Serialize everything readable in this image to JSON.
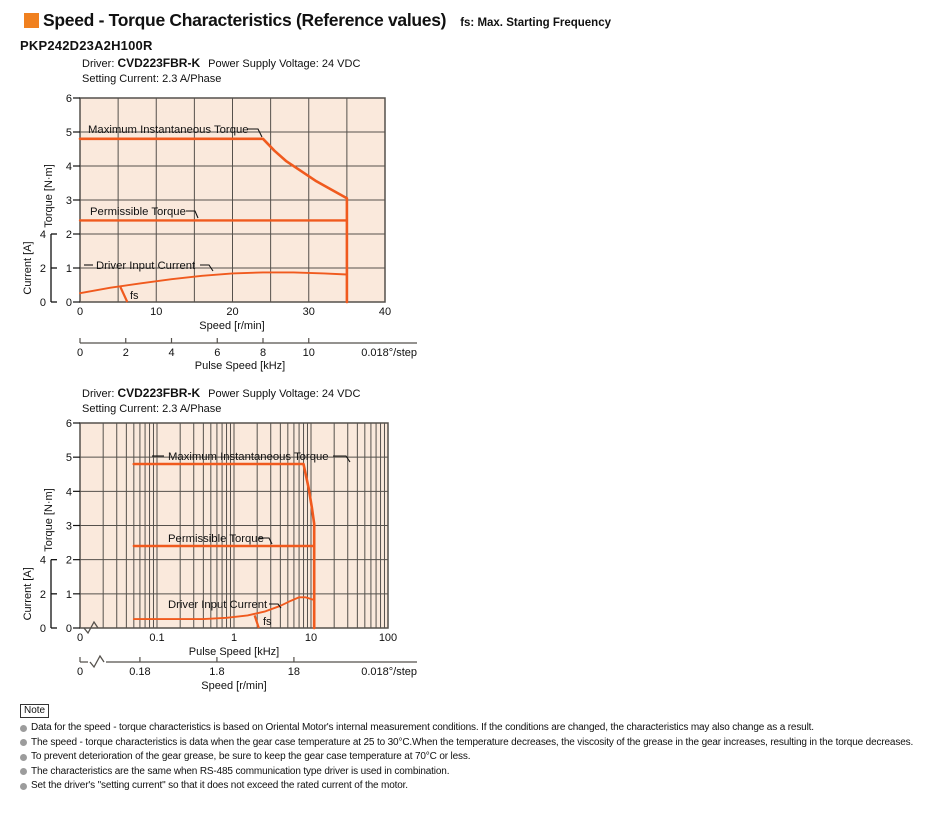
{
  "header": {
    "title": "Speed - Torque Characteristics (Reference values)",
    "subtitle": "fs: Max. Starting Frequency"
  },
  "model": "PKP242D23A2H100R",
  "colors": {
    "accent_orange": "#F0801F",
    "curve_orange": "#F05A1E",
    "plot_background": "#FAE9DC",
    "grid_line": "#55514C",
    "note_bullet": "#9C9C9C",
    "text": "#111111"
  },
  "chart_data": [
    {
      "id": "linear",
      "type": "line",
      "caption": {
        "prefix": "Driver: ",
        "model": "CVD223FBR-K",
        "suffix": "Power Supply Voltage: 24 VDC",
        "line2": "Setting Current: 2.3 A/Phase"
      },
      "x_axis": {
        "scale": "linear",
        "min": 0,
        "max": 40,
        "grid_step": 5,
        "title": "Speed [r/min]",
        "ticks": [
          {
            "v": 0,
            "label": "0"
          },
          {
            "v": 10,
            "label": "10"
          },
          {
            "v": 20,
            "label": "20"
          },
          {
            "v": 30,
            "label": "30"
          },
          {
            "v": 40,
            "label": "40"
          }
        ],
        "has_break": false
      },
      "y_axis": {
        "min": 0,
        "max": 6,
        "grid_step": 1,
        "ticks": [
          0,
          1,
          2,
          3,
          4,
          5,
          6
        ],
        "title": "Torque [N·m]"
      },
      "current_axis": {
        "title": "Current [A]",
        "ticks": [
          0,
          2,
          4
        ],
        "amps_at_full_bracket": 4,
        "torque_at_full_bracket": 2
      },
      "secondary_axis": {
        "title": "Pulse Speed [kHz]",
        "resolution": "0.018°/step",
        "has_break": false,
        "ticks": [
          {
            "pos": 0,
            "label": "0"
          },
          {
            "pos": 6,
            "label": "2"
          },
          {
            "pos": 12,
            "label": "4"
          },
          {
            "pos": 18,
            "label": "6"
          },
          {
            "pos": 24,
            "label": "8"
          },
          {
            "pos": 30,
            "label": "10"
          }
        ]
      },
      "series": [
        {
          "name": "Maximum Instantaneous Torque",
          "points": [
            [
              0,
              4.8
            ],
            [
              24,
              4.8
            ],
            [
              25.5,
              4.45
            ],
            [
              27,
              4.15
            ],
            [
              29,
              3.85
            ],
            [
              31,
              3.55
            ],
            [
              33,
              3.3
            ],
            [
              35,
              3.05
            ],
            [
              35,
              0
            ]
          ]
        },
        {
          "name": "Permissible Torque",
          "points": [
            [
              0,
              2.4
            ],
            [
              35,
              2.4
            ]
          ]
        },
        {
          "name": "Driver Input Current",
          "points": [
            [
              0,
              0.26
            ],
            [
              4,
              0.42
            ],
            [
              8,
              0.55
            ],
            [
              12,
              0.67
            ],
            [
              16,
              0.77
            ],
            [
              20,
              0.84
            ],
            [
              24,
              0.87
            ],
            [
              28,
              0.87
            ],
            [
              32,
              0.84
            ],
            [
              35,
              0.81
            ]
          ]
        }
      ],
      "fs_marker": {
        "label": "fs",
        "points": [
          [
            5.3,
            0.44
          ],
          [
            6.2,
            0
          ]
        ]
      }
    },
    {
      "id": "log",
      "type": "line",
      "caption": {
        "prefix": "Driver: ",
        "model": "CVD223FBR-K",
        "suffix": "Power Supply Voltage: 24 VDC",
        "line2": "Setting Current: 2.3 A/Phase"
      },
      "x_axis": {
        "scale": "log",
        "min": 0.01,
        "max": 100,
        "title": "Pulse Speed [kHz]",
        "ticks": [
          {
            "v": 0.01,
            "label": "0"
          },
          {
            "v": 0.1,
            "label": "0.1"
          },
          {
            "v": 1,
            "label": "1"
          },
          {
            "v": 10,
            "label": "10"
          },
          {
            "v": 100,
            "label": "100"
          }
        ],
        "has_break": true
      },
      "y_axis": {
        "min": 0,
        "max": 6,
        "grid_step": 1,
        "ticks": [
          0,
          1,
          2,
          3,
          4,
          5,
          6
        ],
        "title": "Torque [N·m]"
      },
      "current_axis": {
        "title": "Current [A]",
        "ticks": [
          0,
          2,
          4
        ],
        "amps_at_full_bracket": 4,
        "torque_at_full_bracket": 2
      },
      "secondary_axis": {
        "title": "Speed [r/min]",
        "resolution": "0.018°/step",
        "has_break": true,
        "ticks": [
          {
            "pos": 0.01,
            "label": "0"
          },
          {
            "pos": 0.06,
            "label": "0.18"
          },
          {
            "pos": 0.6,
            "label": "1.8"
          },
          {
            "pos": 6,
            "label": "18"
          }
        ]
      },
      "series": [
        {
          "name": "Maximum Instantaneous Torque",
          "points": [
            [
              0.05,
              4.8
            ],
            [
              8,
              4.8
            ],
            [
              9.3,
              4.1
            ],
            [
              10.3,
              3.5
            ],
            [
              11,
              3.05
            ],
            [
              11,
              0
            ]
          ]
        },
        {
          "name": "Permissible Torque",
          "points": [
            [
              0.05,
              2.4
            ],
            [
              11,
              2.4
            ]
          ]
        },
        {
          "name": "Driver Input Current",
          "points": [
            [
              0.05,
              0.26
            ],
            [
              0.4,
              0.26
            ],
            [
              0.8,
              0.3
            ],
            [
              1.5,
              0.37
            ],
            [
              2.5,
              0.48
            ],
            [
              4,
              0.65
            ],
            [
              5.5,
              0.8
            ],
            [
              7,
              0.9
            ],
            [
              8.5,
              0.9
            ],
            [
              10,
              0.85
            ],
            [
              11,
              0.82
            ]
          ]
        }
      ],
      "fs_marker": {
        "label": "fs",
        "points": [
          [
            1.85,
            0.37
          ],
          [
            2.1,
            0
          ]
        ]
      }
    }
  ],
  "notes": {
    "label": "Note",
    "items": [
      "Data for the speed - torque characteristics is based on Oriental Motor's internal measurement conditions. If the conditions are changed, the characteristics may also change as a result.",
      "The speed - torque characteristics is data when the gear case temperature at 25 to 30°C.When the temperature decreases, the viscosity of the grease in the gear increases, resulting in the torque decreases.",
      "To prevent deterioration of the gear grease, be sure to keep the gear case temperature at 70°C or less.",
      "The characteristics are the same when RS-485 communication type driver is used in combination.",
      "Set the driver's \"setting current\" so that it does not exceed the rated current of the motor."
    ]
  }
}
